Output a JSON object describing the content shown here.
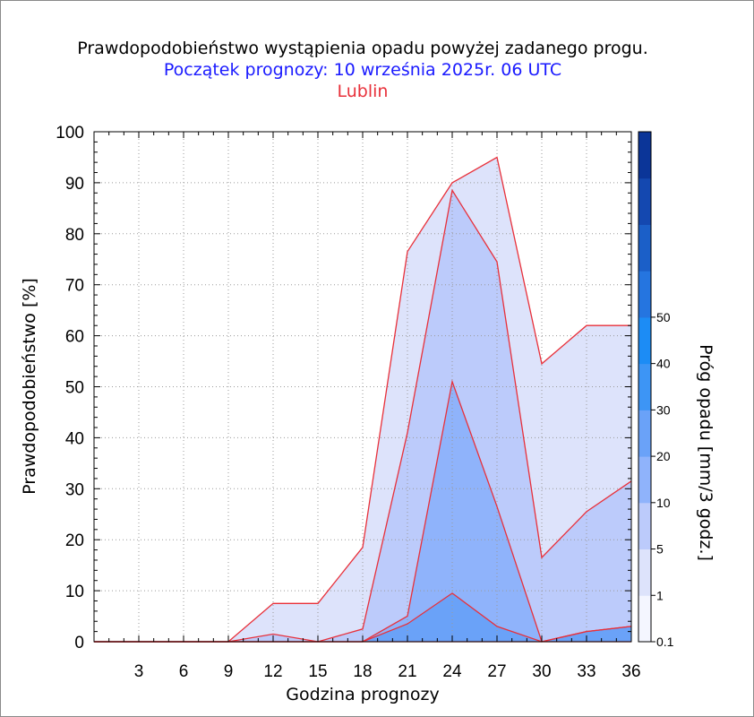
{
  "chart_data": {
    "type": "area",
    "title": "Prawdopodobieństwo wystąpienia opadu powyżej zadanego progu.",
    "subtitle": "Początek prognozy: 10 września 2025r. 06 UTC",
    "location": "Lublin",
    "xlabel": "Godzina prognozy",
    "ylabel": "Prawdopodobieństwo [%]",
    "colorbar_label": "Próg opadu [mm/3 godz.]",
    "xlim": [
      0,
      36
    ],
    "ylim": [
      0,
      100
    ],
    "x_ticks": [
      3,
      6,
      9,
      12,
      15,
      18,
      21,
      24,
      27,
      30,
      33,
      36
    ],
    "y_ticks": [
      0,
      10,
      20,
      30,
      40,
      50,
      60,
      70,
      80,
      90,
      100
    ],
    "x": [
      0,
      3,
      6,
      9,
      12,
      15,
      18,
      21,
      24,
      27,
      30,
      33,
      36
    ],
    "series": [
      {
        "threshold": 0.1,
        "color": "#dde3fb",
        "values": [
          0,
          0,
          0,
          0,
          7.5,
          7.5,
          18.5,
          76.5,
          90,
          95,
          54.5,
          62,
          62
        ]
      },
      {
        "threshold": 1,
        "color": "#bccbfb",
        "values": [
          0,
          0,
          0,
          0,
          1.5,
          0,
          2.5,
          41,
          88.5,
          74.5,
          16.5,
          25.5,
          31.5
        ]
      },
      {
        "threshold": 5,
        "color": "#8fb3fb",
        "values": [
          0,
          0,
          0,
          0,
          0,
          0,
          0,
          5,
          51,
          26.5,
          0,
          2,
          3
        ]
      },
      {
        "threshold": 10,
        "color": "#6aa2f8",
        "values": [
          0,
          0,
          0,
          0,
          0,
          0,
          0,
          3.5,
          9.5,
          3,
          0,
          2,
          3
        ]
      },
      {
        "threshold": 20,
        "color": "#4a90f3",
        "values": [
          0,
          0,
          0,
          0,
          0,
          0,
          0,
          0,
          0,
          0,
          0,
          0,
          0
        ]
      }
    ],
    "colorbar": {
      "bands": [
        "#f4f6ff",
        "#dde3fb",
        "#bccbfb",
        "#8fb3fb",
        "#6aa2f8",
        "#3d95f5",
        "#1c8cf5",
        "#2575e0",
        "#1b5fc8",
        "#1448b0",
        "#0b3598"
      ],
      "labels": [
        "0.1",
        "1",
        "5",
        "10",
        "20",
        "30",
        "40",
        "50"
      ]
    },
    "outline_color": "#e8303a",
    "grid": true
  }
}
